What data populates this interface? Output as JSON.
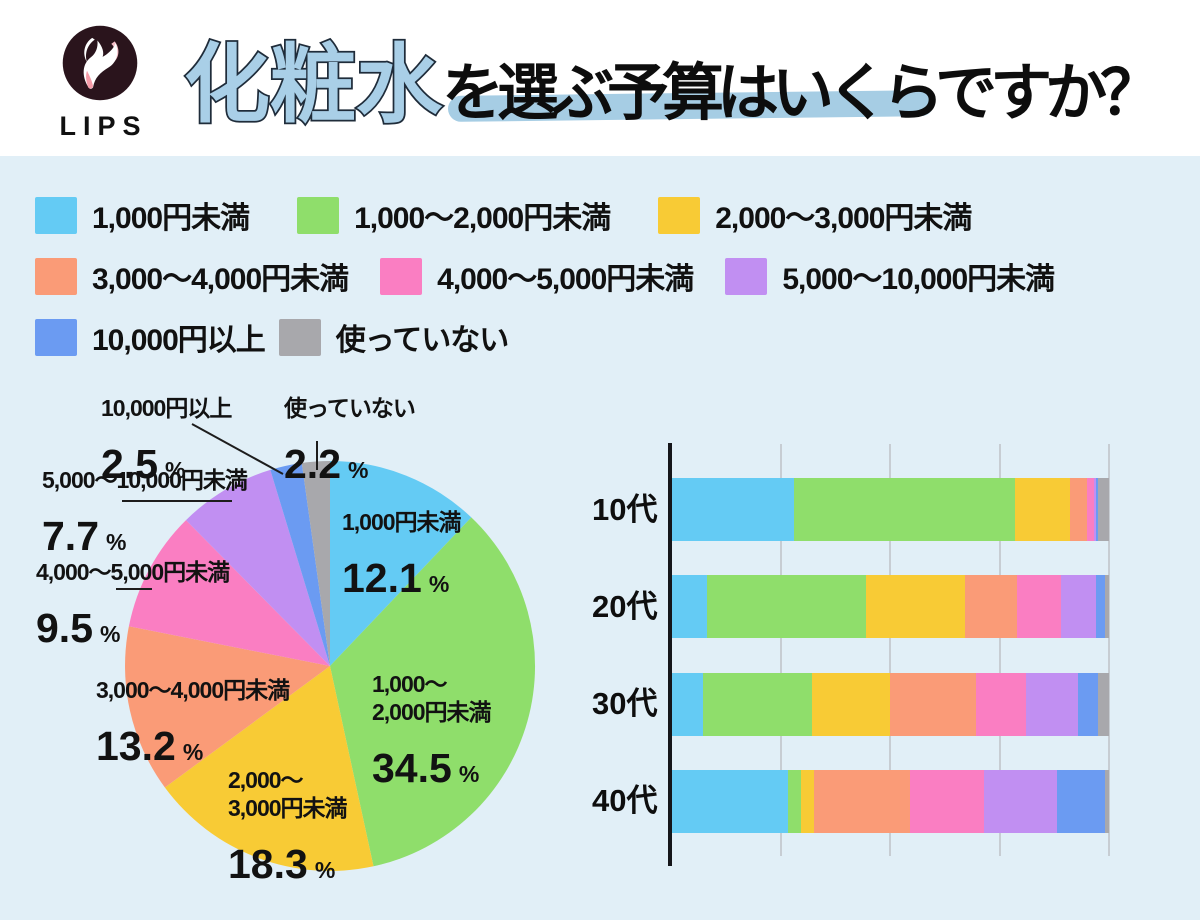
{
  "header": {
    "logo_text": "LIPS",
    "title_highlight": "化粧水",
    "title_rest": "を選ぶ予算はいくらですか？"
  },
  "colors": {
    "background": "#E1EFF7",
    "header_bg": "#FFFFFF",
    "title_highlight_fill": "#A9CFE7",
    "title_underline": "#A6CDE4",
    "title_text": "#0D0D0D",
    "axis": "#15161A",
    "gridline": "#C7CDD3",
    "leader_line": "#1D1D1D",
    "label_text": "#121212"
  },
  "categories": [
    {
      "label": "1,000円未満",
      "color": "#64CBF4"
    },
    {
      "label": "1,000〜2,000円未満",
      "color": "#8FDE6B"
    },
    {
      "label": "2,000〜3,000円未満",
      "color": "#F8CB35"
    },
    {
      "label": "3,000〜4,000円未満",
      "color": "#FA9B77"
    },
    {
      "label": "4,000〜5,000円未満",
      "color": "#FA7EC2"
    },
    {
      "label": "5,000〜10,000円未満",
      "color": "#C18FF2"
    },
    {
      "label": "10,000円以上",
      "color": "#6B9BF2"
    },
    {
      "label": "使っていない",
      "color": "#A8A8AC"
    }
  ],
  "legend": {
    "rows": [
      [
        0,
        1,
        2
      ],
      [
        3,
        4,
        5
      ],
      [
        6,
        7
      ]
    ]
  },
  "chart_data": [
    {
      "type": "pie",
      "unit": "%",
      "start_angle_deg": 0,
      "direction": "clockwise",
      "labels": [
        "1,000円未満",
        "1,000〜2,000円未満",
        "2,000〜3,000円未満",
        "3,000〜4,000円未満",
        "4,000〜5,000円未満",
        "5,000〜10,000円未満",
        "10,000円以上",
        "使っていない"
      ],
      "values": [
        12.1,
        34.5,
        18.3,
        13.2,
        9.5,
        7.7,
        2.5,
        2.2
      ],
      "label_items": [
        {
          "name": "1,000円未満",
          "pct": "12.1"
        },
        {
          "name": "1,000〜\n2,000円未満",
          "pct": "34.5"
        },
        {
          "name": "2,000〜\n3,000円未満",
          "pct": "18.3"
        },
        {
          "name": "3,000〜4,000円未満",
          "pct": "13.2"
        },
        {
          "name": "4,000〜5,000円未満",
          "pct": "9.5"
        },
        {
          "name": "5,000〜10,000円未満",
          "pct": "7.7"
        },
        {
          "name": "10,000円以上",
          "pct": "2.5"
        },
        {
          "name": "使っていない",
          "pct": "2.2"
        }
      ]
    },
    {
      "type": "bar",
      "stacked": true,
      "orientation": "horizontal",
      "categories": [
        "10代",
        "20代",
        "30代",
        "40代"
      ],
      "xlim": [
        0,
        100
      ],
      "gridline_step_pct": 25,
      "grid": true,
      "series": [
        {
          "name": "1,000円未満",
          "values": [
            28.0,
            8.0,
            7.0,
            26.5
          ]
        },
        {
          "name": "1,000〜2,000円未満",
          "values": [
            50.5,
            36.5,
            25.0,
            3.0
          ]
        },
        {
          "name": "2,000〜3,000円未満",
          "values": [
            12.5,
            22.5,
            18.0,
            3.0
          ]
        },
        {
          "name": "3,000〜4,000円未満",
          "values": [
            4.0,
            12.0,
            19.5,
            22.0
          ]
        },
        {
          "name": "4,000〜5,000円未満",
          "values": [
            1.5,
            10.0,
            11.5,
            17.0
          ]
        },
        {
          "name": "5,000〜10,000円未満",
          "values": [
            0.5,
            8.0,
            12.0,
            16.5
          ]
        },
        {
          "name": "10,000円以上",
          "values": [
            0.5,
            2.0,
            4.5,
            11.0
          ]
        },
        {
          "name": "使っていない",
          "values": [
            2.5,
            1.0,
            2.5,
            1.0
          ]
        }
      ]
    }
  ]
}
